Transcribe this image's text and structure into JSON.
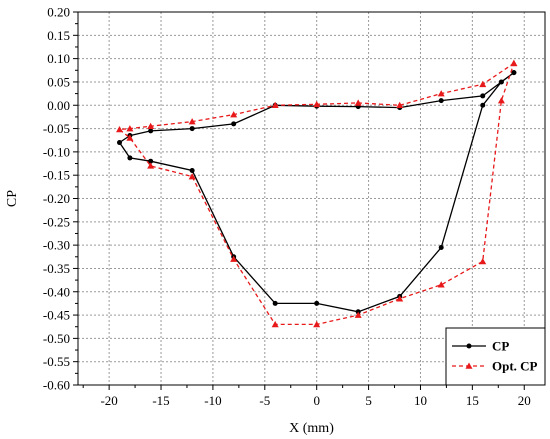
{
  "chart_data": {
    "type": "line",
    "xlabel": "X (mm)",
    "ylabel": "CP",
    "xlim": [
      -23,
      22
    ],
    "ylim": [
      -0.6,
      0.2
    ],
    "xticks": [
      -20,
      -15,
      -10,
      -5,
      0,
      5,
      10,
      15,
      20
    ],
    "yticks": [
      0.2,
      0.15,
      0.1,
      0.05,
      0.0,
      -0.05,
      -0.1,
      -0.15,
      -0.2,
      -0.25,
      -0.3,
      -0.35,
      -0.4,
      -0.45,
      -0.5,
      -0.55,
      -0.6
    ],
    "xtick_labels": [
      "-20",
      "-15",
      "-10",
      "-5",
      "0",
      "5",
      "10",
      "15",
      "20"
    ],
    "ytick_labels": [
      "0.20",
      "0.15",
      "0.10",
      "0.05",
      "0.00",
      "-0.05",
      "-0.10",
      "-0.15",
      "-0.20",
      "-0.25",
      "-0.30",
      "-0.35",
      "-0.40",
      "-0.45",
      "-0.50",
      "-0.55",
      "-0.60"
    ],
    "grid": true,
    "legend_position": "bottom-right",
    "series": [
      {
        "name": "CP",
        "color": "#000000",
        "line_style": "solid",
        "marker": "circle",
        "x": [
          19,
          16,
          12,
          8,
          4,
          0,
          -4,
          -8,
          -12,
          -16,
          -18,
          -19,
          -18,
          -16,
          -12,
          -8,
          -4,
          0,
          4,
          8,
          12,
          16,
          17.8,
          19
        ],
        "y": [
          0.07,
          0.02,
          0.01,
          -0.005,
          -0.003,
          -0.002,
          0.0,
          -0.04,
          -0.05,
          -0.055,
          -0.065,
          -0.08,
          -0.113,
          -0.12,
          -0.14,
          -0.325,
          -0.425,
          -0.425,
          -0.443,
          -0.41,
          -0.305,
          0.0,
          0.05,
          0.07
        ]
      },
      {
        "name": "Opt. CP",
        "color": "#e8191a",
        "line_style": "dashed",
        "marker": "triangle",
        "x": [
          19,
          16,
          12,
          8,
          4,
          0,
          -4,
          -8,
          -12,
          -16,
          -18,
          -19,
          -18,
          -16,
          -12,
          -8,
          -4,
          0,
          4,
          8,
          12,
          16,
          17.8,
          19
        ],
        "y": [
          0.09,
          0.045,
          0.025,
          0.0,
          0.005,
          0.002,
          0.0,
          -0.02,
          -0.035,
          -0.045,
          -0.05,
          -0.052,
          -0.07,
          -0.13,
          -0.153,
          -0.33,
          -0.47,
          -0.47,
          -0.45,
          -0.415,
          -0.385,
          -0.335,
          0.01,
          0.09
        ]
      }
    ]
  }
}
